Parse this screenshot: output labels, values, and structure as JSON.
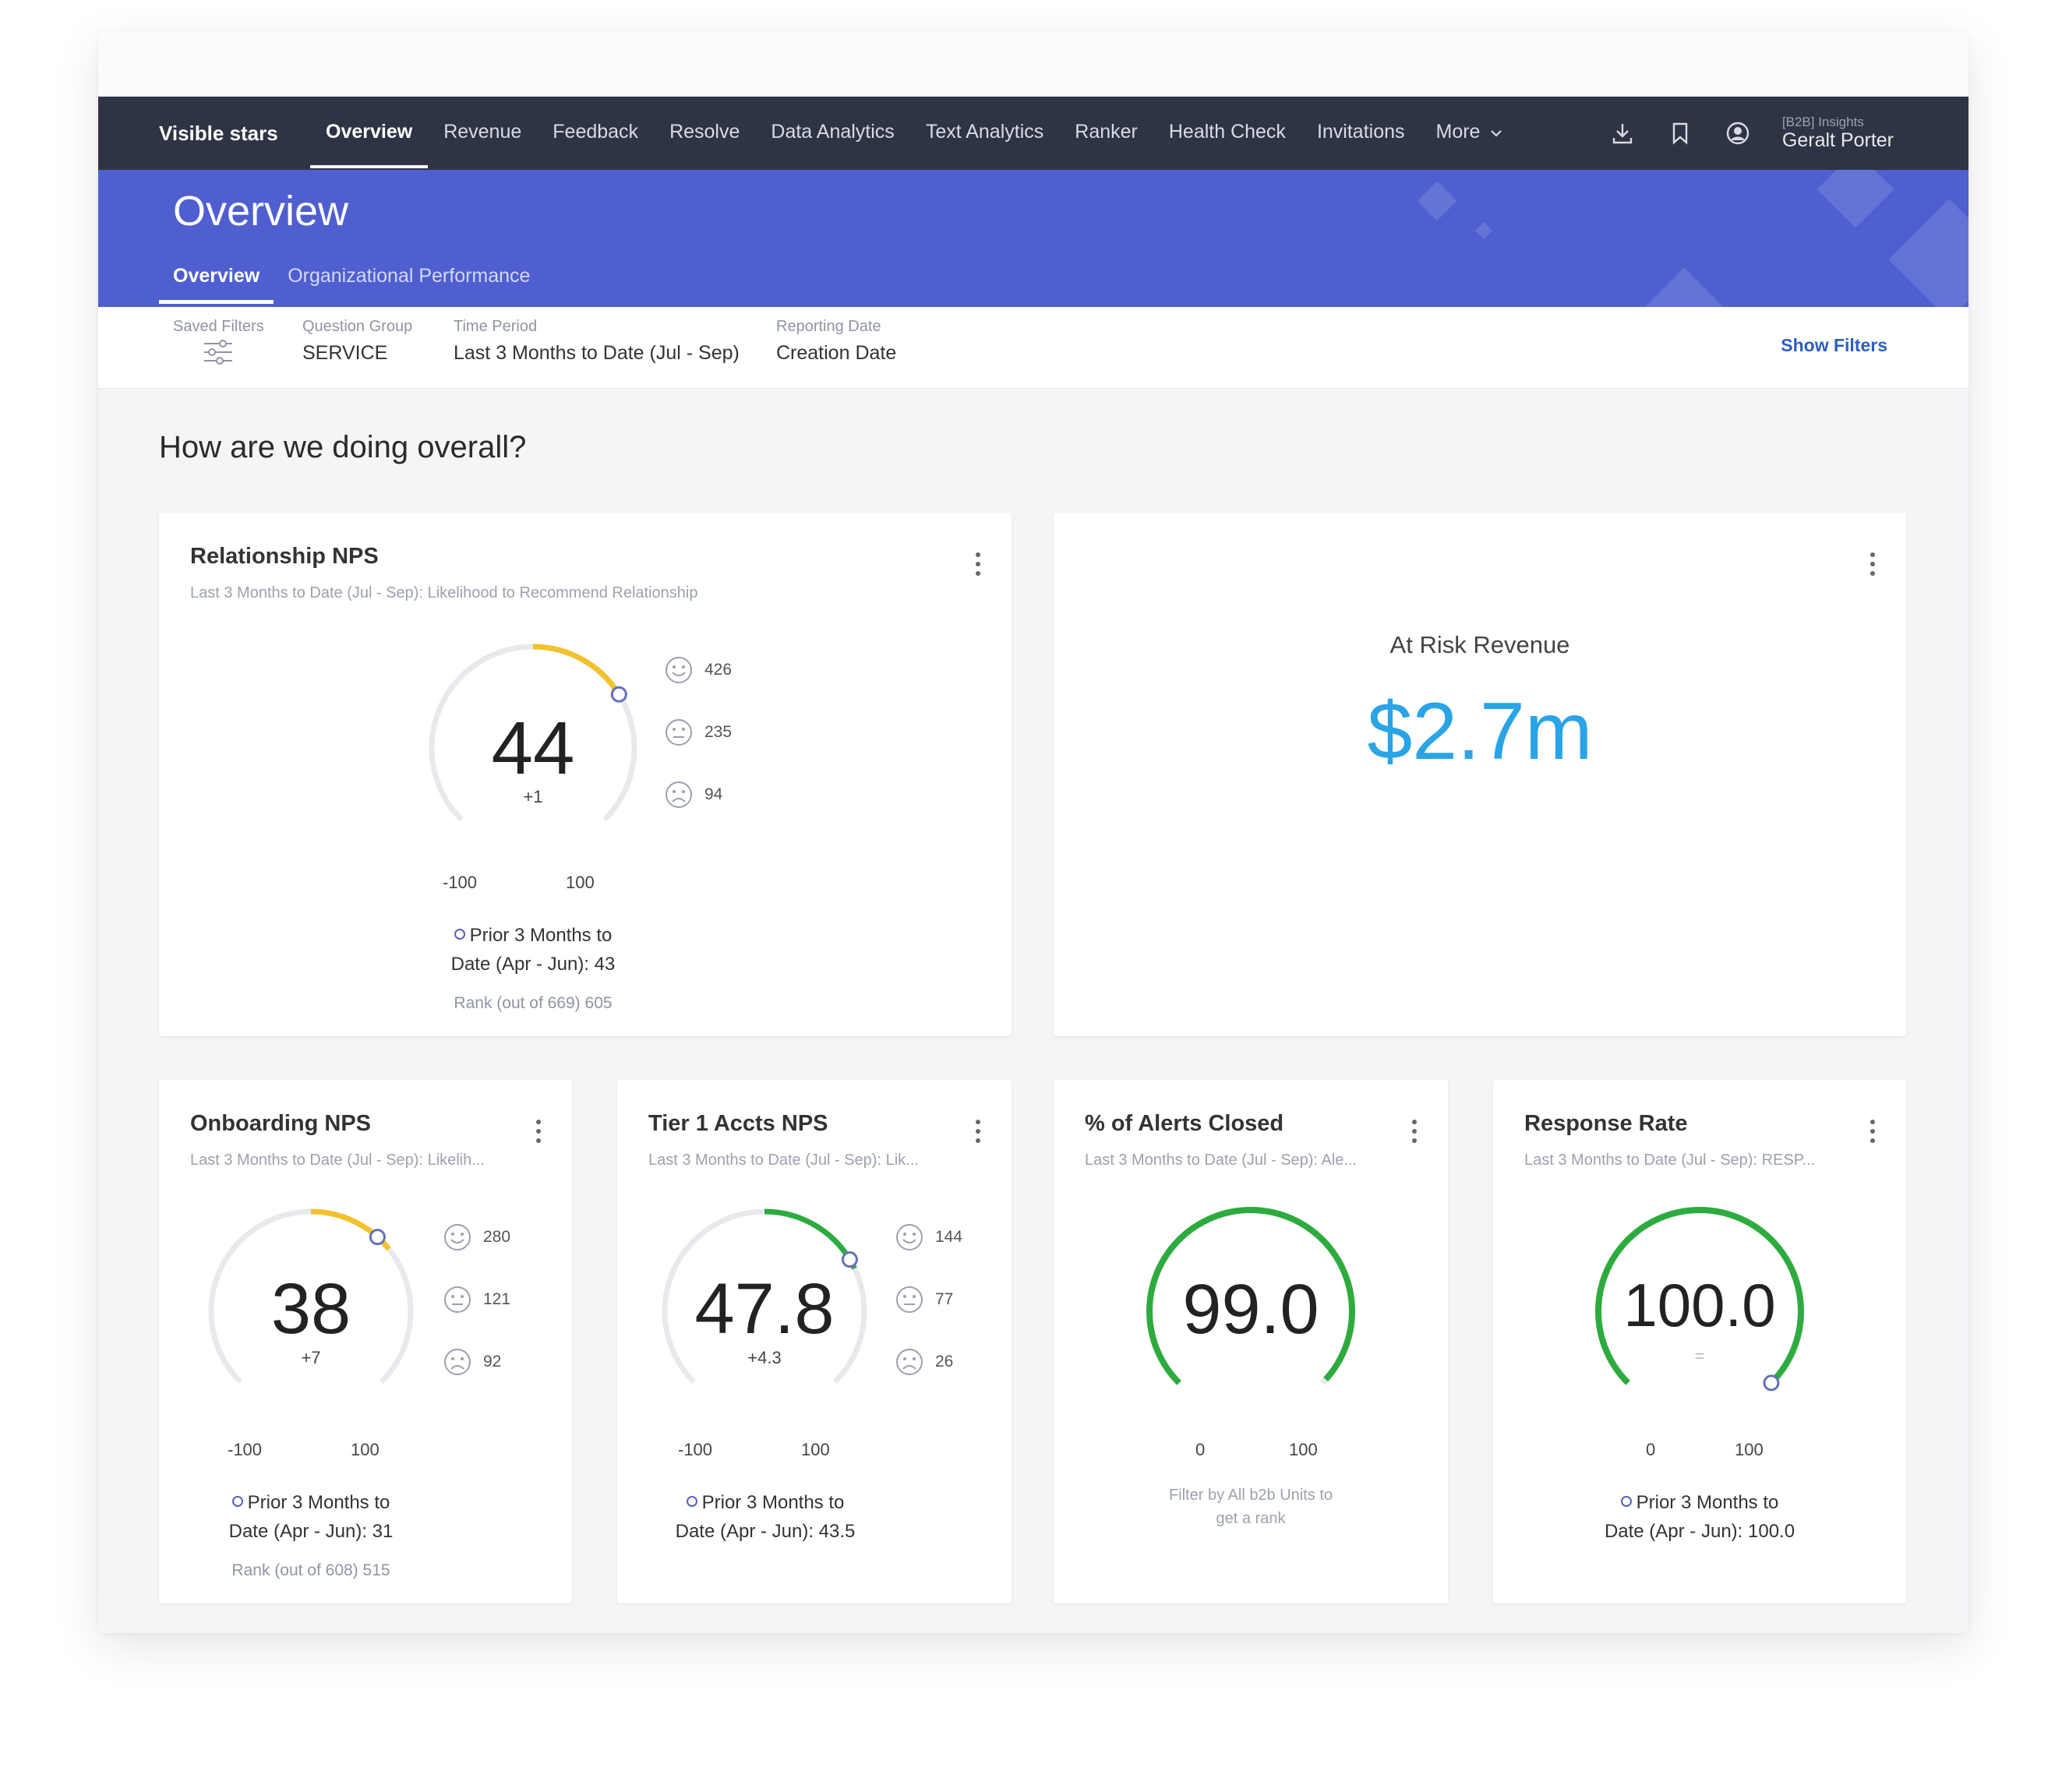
{
  "nav": {
    "brand": "Visible stars",
    "items": [
      "Overview",
      "Revenue",
      "Feedback",
      "Resolve",
      "Data Analytics",
      "Text Analytics",
      "Ranker",
      "Health Check",
      "Invitations",
      "More"
    ],
    "user_role": "[B2B] Insights",
    "user_name": "Geralt Porter"
  },
  "header": {
    "title": "Overview",
    "tabs": [
      "Overview",
      "Organizational Performance"
    ]
  },
  "filters": {
    "saved_label": "Saved Filters",
    "question_group_label": "Question Group",
    "question_group_value": "SERVICE",
    "time_period_label": "Time Period",
    "time_period_value": "Last 3 Months to Date (Jul - Sep)",
    "reporting_date_label": "Reporting Date",
    "reporting_date_value": "Creation Date",
    "show_filters": "Show Filters"
  },
  "section_title": "How are we doing overall?",
  "cards": {
    "relationship": {
      "title": "Relationship NPS",
      "subtitle": "Last 3 Months to Date (Jul - Sep): Likelihood to Recommend Relationship",
      "value": "44",
      "delta": "+1",
      "min": "-100",
      "max": "100",
      "promoters": "426",
      "passives": "235",
      "detractors": "94",
      "prior_line1": "Prior 3 Months to",
      "prior_line2": "Date (Apr - Jun): 43",
      "rank": "Rank (out of 669) 605"
    },
    "risk": {
      "label": "At Risk Revenue",
      "value": "$2.7m"
    },
    "onboarding": {
      "title": "Onboarding NPS",
      "subtitle": "Last 3 Months to Date (Jul - Sep): Likelih...",
      "value": "38",
      "delta": "+7",
      "min": "-100",
      "max": "100",
      "promoters": "280",
      "passives": "121",
      "detractors": "92",
      "prior_line1": "Prior 3 Months to",
      "prior_line2": "Date (Apr - Jun): 31",
      "rank": "Rank (out of 608) 515"
    },
    "tier1": {
      "title": "Tier 1 Accts NPS",
      "subtitle": "Last 3 Months to Date (Jul - Sep): Lik...",
      "value": "47.8",
      "delta": "+4.3",
      "min": "-100",
      "max": "100",
      "promoters": "144",
      "passives": "77",
      "detractors": "26",
      "prior_line1": "Prior 3 Months to",
      "prior_line2": "Date (Apr - Jun): 43.5"
    },
    "alerts": {
      "title": "% of Alerts Closed",
      "subtitle": "Last 3 Months to Date (Jul - Sep): Ale...",
      "value": "99.0",
      "min": "0",
      "max": "100",
      "note_line1": "Filter by All b2b Units to",
      "note_line2": "get a rank"
    },
    "response": {
      "title": "Response Rate",
      "subtitle": "Last 3 Months to Date (Jul - Sep): RESP...",
      "value": "100.0",
      "delta": "=",
      "min": "0",
      "max": "100",
      "prior_line1": "Prior 3 Months to",
      "prior_line2": "Date (Apr - Jun): 100.0"
    }
  },
  "gauge_levels": {
    "relationship": {
      "value": 44,
      "prior": 43,
      "min": -100,
      "max": 100,
      "color": "#f2c12e"
    },
    "onboarding": {
      "value": 38,
      "prior": 31,
      "min": -100,
      "max": 100,
      "color": "#f2c12e"
    },
    "tier1": {
      "value": 47.8,
      "prior": 43.5,
      "min": -100,
      "max": 100,
      "color": "#2eab3f"
    },
    "alerts": {
      "value": 99.0,
      "min": 0,
      "max": 100,
      "color": "#2eab3f"
    },
    "response": {
      "value": 100.0,
      "prior": 100.0,
      "min": 0,
      "max": 100,
      "color": "#2eab3f"
    }
  },
  "colors": {
    "nav_bg": "#2f3445",
    "header_bg": "#4f5fd0",
    "risk_value": "#2aa4e6",
    "link": "#2c5fbf"
  },
  "icons": [
    "download-icon",
    "bookmark-icon",
    "user-icon",
    "sliders-icon",
    "smile-icon",
    "neutral-face-icon",
    "frown-icon",
    "kebab-menu-icon",
    "chevron-down-icon"
  ]
}
